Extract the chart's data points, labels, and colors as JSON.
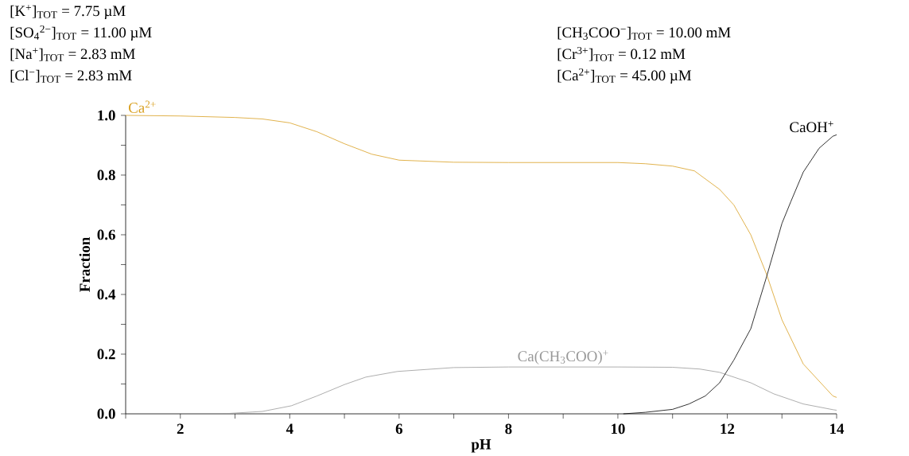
{
  "chart_data": {
    "type": "line",
    "xlabel": "pH",
    "ylabel": "Fraction",
    "xlim": [
      1,
      14
    ],
    "ylim": [
      0,
      1
    ],
    "marker": "none",
    "line_style": "solid",
    "xticks": [
      {
        "value": 1,
        "label": null
      },
      2,
      {
        "value": 3,
        "label": null
      },
      4,
      {
        "value": 5,
        "label": null
      },
      6,
      {
        "value": 7,
        "label": null
      },
      8,
      {
        "value": 9,
        "label": null
      },
      10,
      {
        "value": 11,
        "label": null
      },
      12,
      {
        "value": 13,
        "label": null
      },
      14
    ],
    "yticks": [
      {
        "value": 0,
        "label": "0.0"
      },
      {
        "value": 0.1,
        "label": null
      },
      {
        "value": 0.2,
        "label": "0.2"
      },
      {
        "value": 0.3,
        "label": null
      },
      {
        "value": 0.4,
        "label": "0.4"
      },
      {
        "value": 0.5,
        "label": null
      },
      {
        "value": 0.6,
        "label": "0.6"
      },
      {
        "value": 0.7,
        "label": null
      },
      {
        "value": 0.8,
        "label": "0.8"
      },
      {
        "value": 0.9,
        "label": null
      },
      {
        "value": 1,
        "label": "1.0"
      }
    ],
    "annotations": [
      "[K$^{+}$]$_{TOT}$ = 7.75 µM",
      "[SO$_{4}$$^{2−}$]$_{TOT}$ = 11.00 µM",
      "[Na$^{+}$]$_{TOT}$ = 2.83 mM",
      "[Cl$^{−}$]$_{TOT}$ = 2.83 mM",
      "[CH$_{3}$COO$^{−}$]$_{TOT}$ = 10.00 mM",
      "[Cr$^{3+}$]$_{TOT}$ = 0.12 mM",
      "[Ca$^{2+}$]$_{TOT}$ = 45.00 µM"
    ],
    "series": [
      {
        "name": "Ca$^{2+}$",
        "color": "#d9a021",
        "x": [
          1,
          2,
          3,
          3.5,
          4,
          4.5,
          5,
          5.5,
          6,
          7,
          8,
          9,
          10,
          10.5,
          11,
          11.4,
          11.86,
          12.12,
          12.43,
          12.72,
          13.0,
          13.39,
          13.93,
          14
        ],
        "values": [
          1.0,
          0.998,
          0.993,
          0.988,
          0.975,
          0.945,
          0.905,
          0.87,
          0.85,
          0.843,
          0.842,
          0.842,
          0.842,
          0.838,
          0.83,
          0.814,
          0.752,
          0.7,
          0.6,
          0.467,
          0.315,
          0.167,
          0.06,
          0.055
        ]
      },
      {
        "name": "Ca(CH$_{3}$COO)$^{+}$",
        "color": "#999999",
        "x": [
          2.77,
          3.5,
          4.03,
          4.5,
          5.0,
          5.39,
          5.97,
          7,
          8,
          9,
          10,
          11,
          11.5,
          11.86,
          12.43,
          12.85,
          13.39,
          13.93,
          14
        ],
        "values": [
          0,
          0.008,
          0.027,
          0.06,
          0.098,
          0.123,
          0.142,
          0.155,
          0.157,
          0.157,
          0.157,
          0.156,
          0.15,
          0.139,
          0.104,
          0.067,
          0.033,
          0.014,
          0.012
        ]
      },
      {
        "name": "CaOH$^{+}$",
        "color": "#000000",
        "x": [
          10.1,
          10.5,
          11,
          11.3,
          11.6,
          11.86,
          12.12,
          12.43,
          12.72,
          13.0,
          13.16,
          13.39,
          13.68,
          13.93,
          14
        ],
        "values": [
          0,
          0.005,
          0.015,
          0.033,
          0.06,
          0.104,
          0.18,
          0.285,
          0.46,
          0.638,
          0.71,
          0.81,
          0.89,
          0.93,
          0.935
        ]
      }
    ]
  }
}
